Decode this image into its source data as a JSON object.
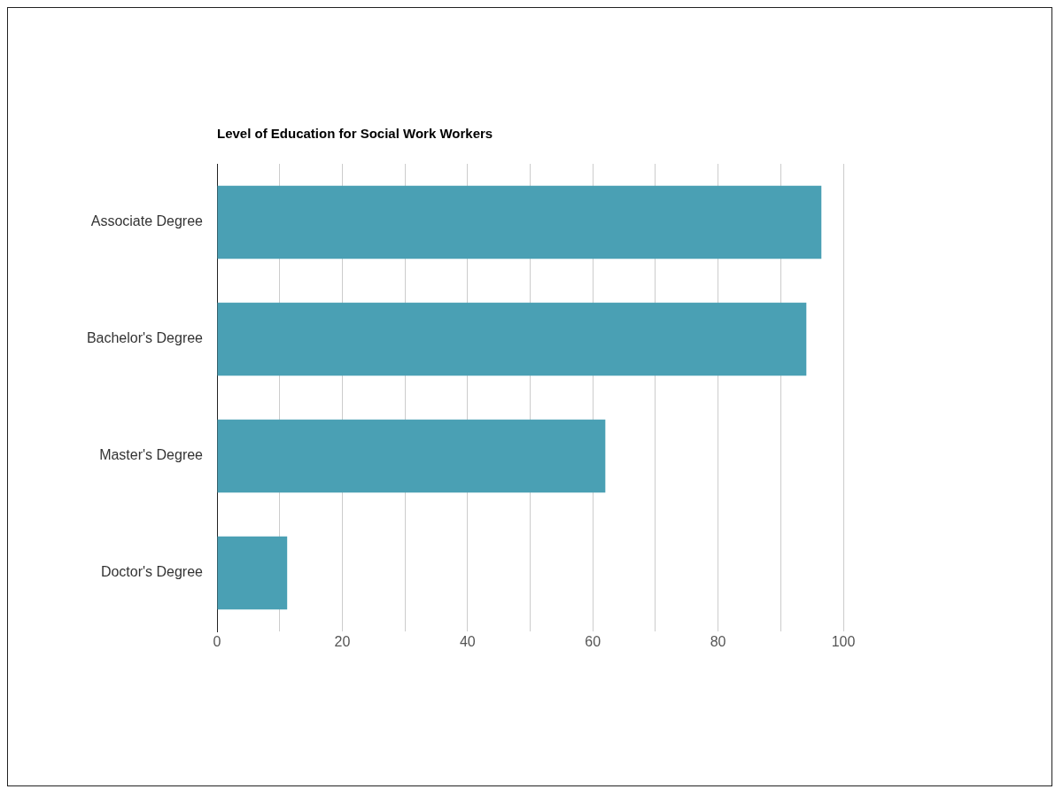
{
  "chart_data": {
    "type": "bar",
    "orientation": "horizontal",
    "title": "Level of Education for Social Work Workers",
    "categories": [
      "Associate Degree",
      "Bachelor's Degree",
      "Master's Degree",
      "Doctor's Degree"
    ],
    "values": [
      96.5,
      94.1,
      62.0,
      11.2
    ],
    "color": "#4aa0b4",
    "xlim": [
      0,
      100
    ],
    "xticks": [
      0,
      {
        "value": 10,
        "label": null
      },
      20,
      {
        "value": 30,
        "label": null
      },
      40,
      {
        "value": 50,
        "label": null
      },
      60,
      {
        "value": 70,
        "label": null
      },
      80,
      {
        "value": 90,
        "label": null
      },
      100
    ],
    "grid": "x",
    "legend": false
  }
}
